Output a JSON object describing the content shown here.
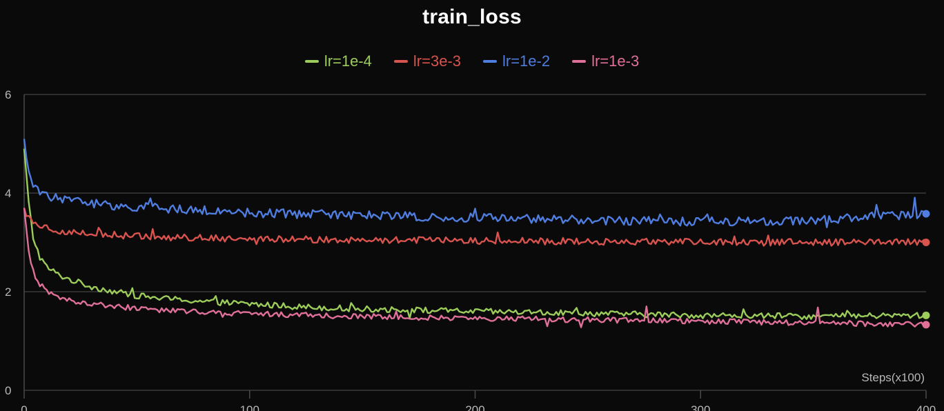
{
  "chart_data": {
    "type": "line",
    "title": "train_loss",
    "xlabel": "Steps(x100)",
    "ylabel": "",
    "xlim": [
      0,
      400
    ],
    "ylim": [
      0,
      6
    ],
    "x_ticks": [
      0,
      100,
      200,
      300,
      400
    ],
    "y_ticks": [
      0,
      2,
      4,
      6
    ],
    "grid": "horizontal",
    "legend_position": "top-center",
    "series": [
      {
        "name": "lr=1e-4",
        "color": "#9ccc5a",
        "x": [
          0,
          2,
          4,
          7,
          10,
          15,
          20,
          30,
          40,
          50,
          60,
          80,
          100,
          120,
          150,
          200,
          250,
          300,
          350,
          400
        ],
        "values": [
          4.9,
          3.8,
          3.1,
          2.7,
          2.5,
          2.35,
          2.25,
          2.1,
          2.0,
          1.92,
          1.87,
          1.8,
          1.75,
          1.7,
          1.65,
          1.6,
          1.56,
          1.52,
          1.5,
          1.52
        ]
      },
      {
        "name": "lr=3e-3",
        "color": "#d9534f",
        "x": [
          0,
          2,
          5,
          10,
          20,
          40,
          60,
          100,
          150,
          200,
          250,
          300,
          350,
          400
        ],
        "values": [
          3.7,
          3.5,
          3.4,
          3.3,
          3.2,
          3.15,
          3.1,
          3.08,
          3.05,
          3.03,
          3.02,
          3.0,
          3.0,
          3.0
        ]
      },
      {
        "name": "lr=1e-2",
        "color": "#4f7de0",
        "x": [
          0,
          2,
          5,
          10,
          20,
          40,
          60,
          100,
          150,
          200,
          250,
          300,
          350,
          400
        ],
        "values": [
          5.1,
          4.4,
          4.1,
          3.95,
          3.85,
          3.75,
          3.7,
          3.6,
          3.55,
          3.5,
          3.45,
          3.42,
          3.45,
          3.58
        ]
      },
      {
        "name": "lr=1e-3",
        "color": "#e0709a",
        "x": [
          0,
          2,
          4,
          7,
          10,
          15,
          20,
          30,
          40,
          60,
          80,
          100,
          150,
          200,
          250,
          300,
          350,
          400
        ],
        "values": [
          3.7,
          2.8,
          2.4,
          2.15,
          2.0,
          1.9,
          1.82,
          1.75,
          1.7,
          1.63,
          1.58,
          1.55,
          1.5,
          1.46,
          1.43,
          1.4,
          1.37,
          1.33
        ]
      }
    ]
  }
}
